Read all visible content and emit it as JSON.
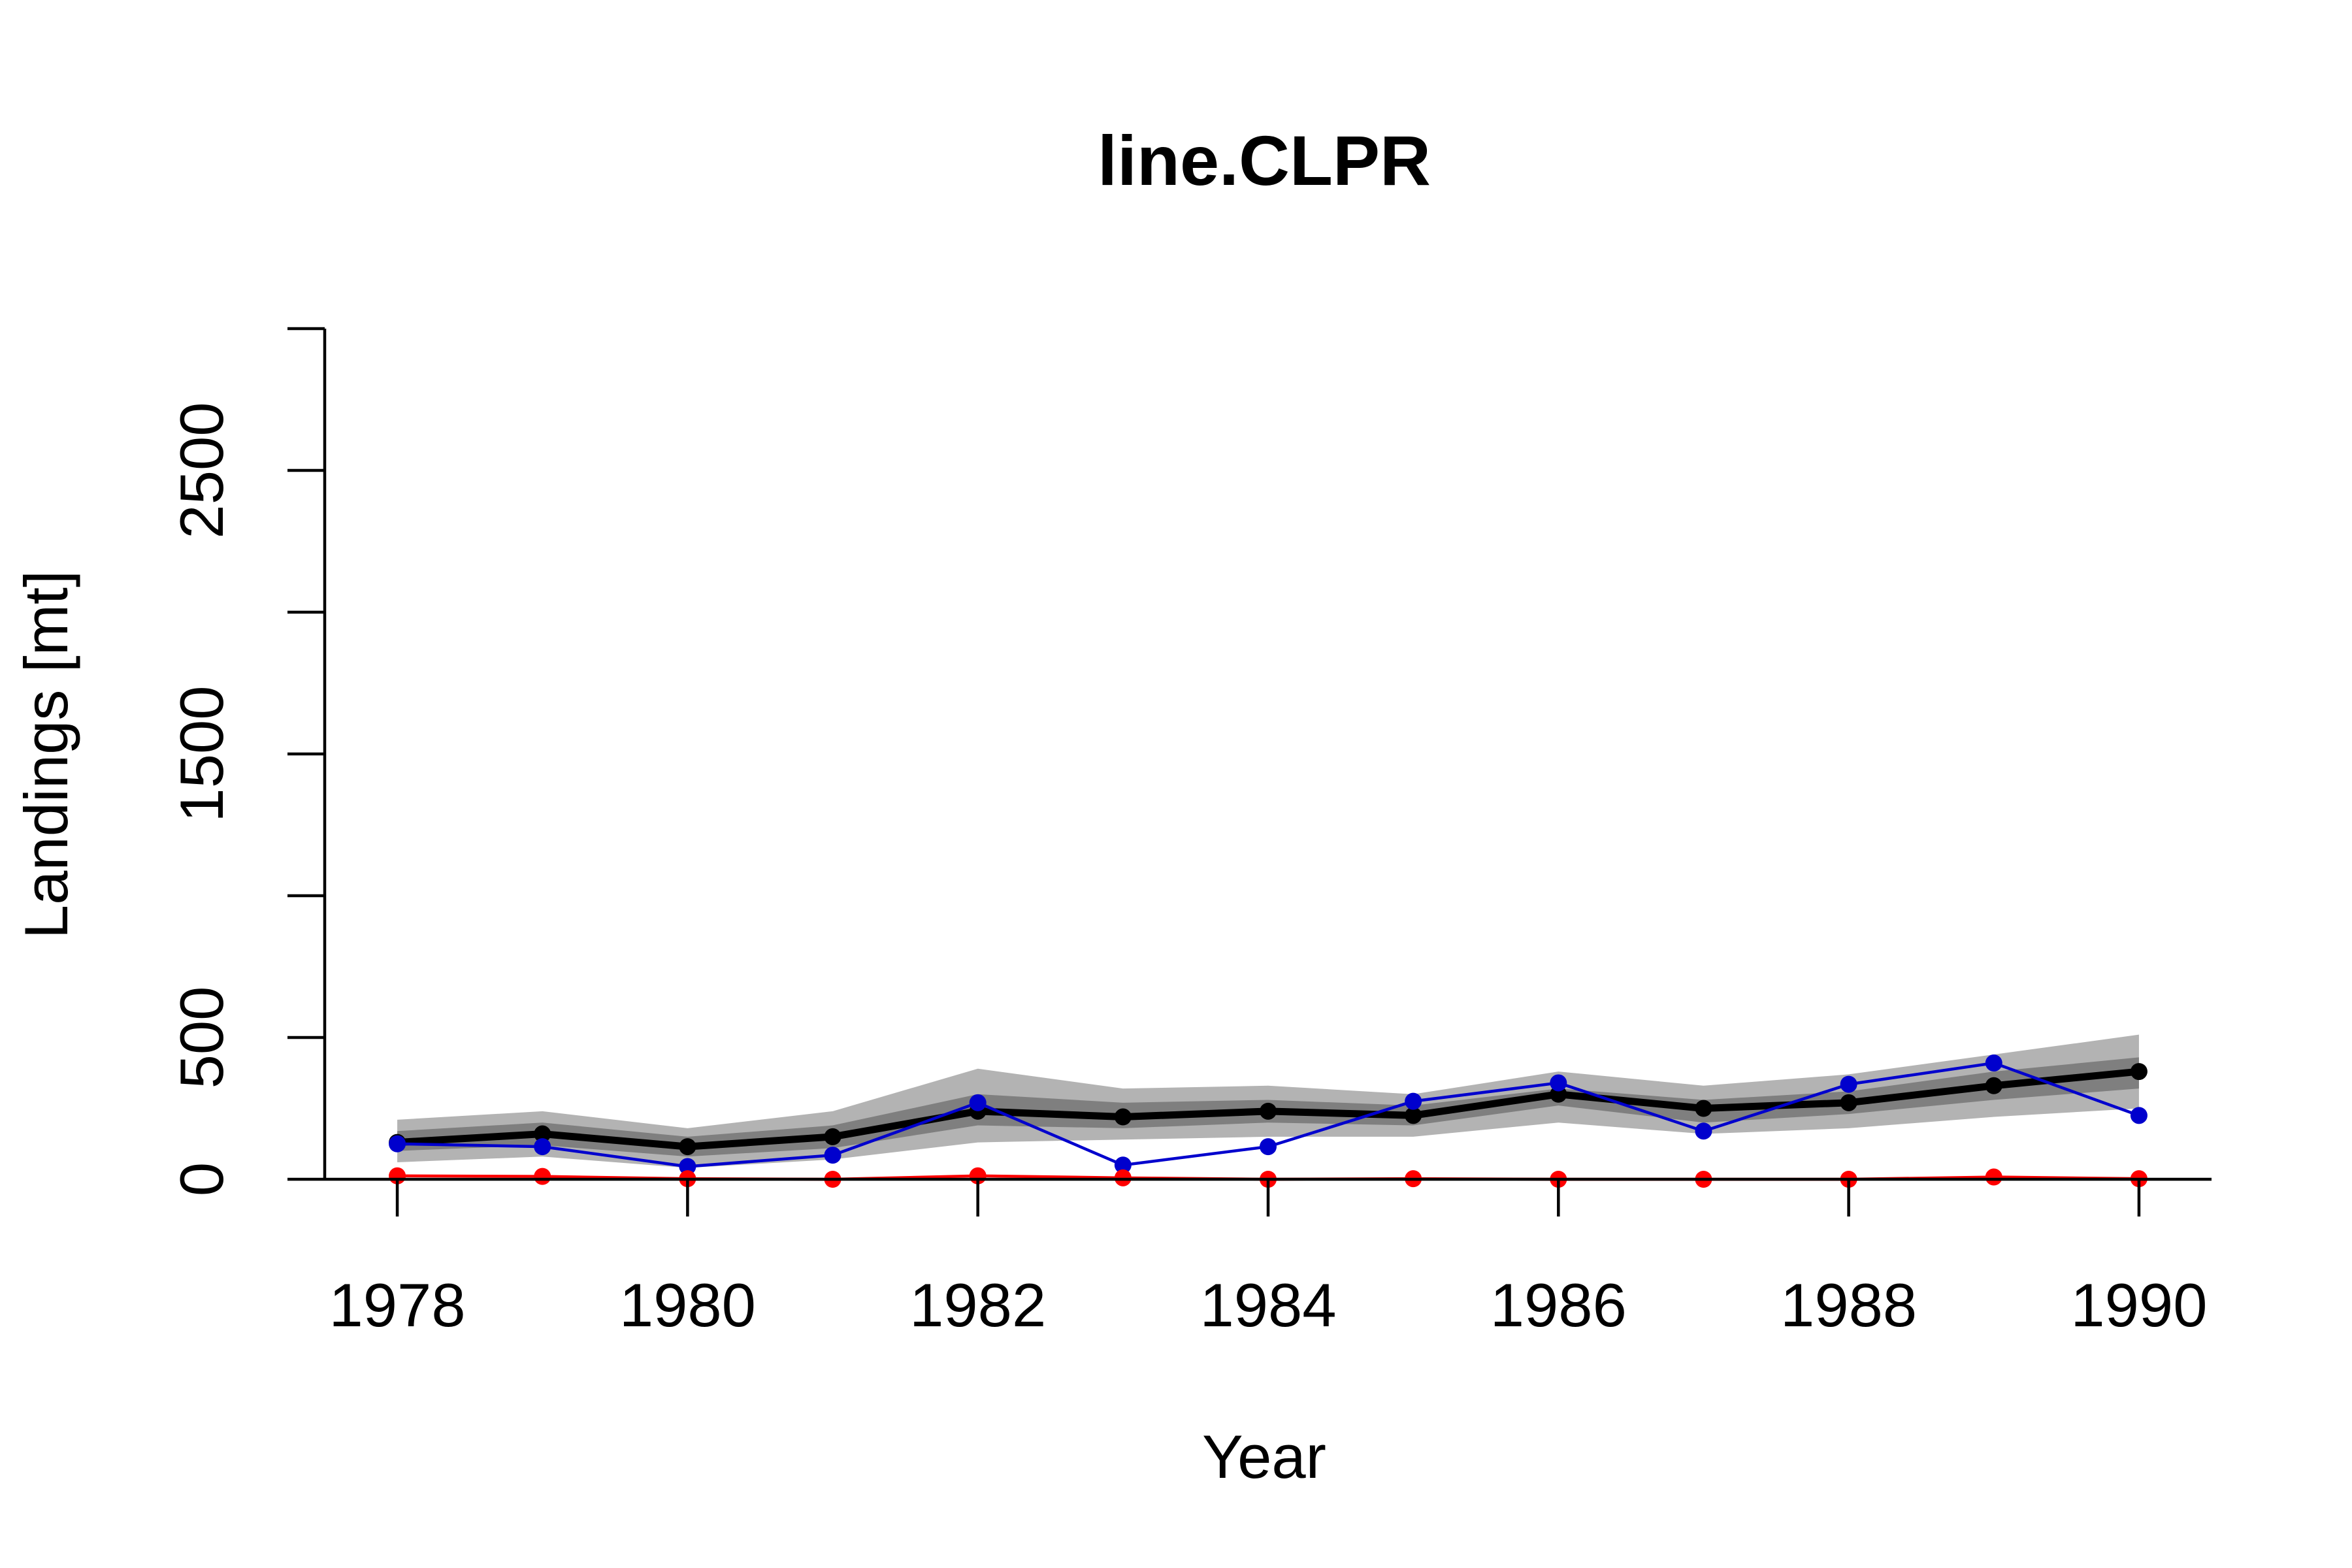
{
  "chart_data": {
    "type": "line",
    "title": "line.CLPR",
    "xlabel": "Year",
    "ylabel": "Landings [mt]",
    "x": [
      1978,
      1979,
      1980,
      1981,
      1982,
      1983,
      1984,
      1985,
      1986,
      1987,
      1988,
      1989,
      1990
    ],
    "xlim": [
      1977.5,
      1990.5
    ],
    "ylim": [
      0,
      3000
    ],
    "x_ticks": [
      1978,
      1980,
      1982,
      1984,
      1986,
      1988,
      1990
    ],
    "y_ticks": [
      0,
      500,
      1000,
      1500,
      2000,
      2500,
      3000
    ],
    "y_tick_labels": [
      "0",
      "500",
      "",
      "1500",
      "",
      "2500",
      ""
    ],
    "grid": false,
    "legend": "none",
    "bands": [
      {
        "color": "#b3b3b3",
        "lower": [
          60,
          80,
          40,
          70,
          130,
          140,
          150,
          150,
          200,
          160,
          180,
          220,
          250
        ],
        "upper": [
          210,
          240,
          180,
          240,
          390,
          320,
          330,
          300,
          380,
          330,
          370,
          440,
          510
        ]
      },
      {
        "color": "#7f7f7f",
        "lower": [
          100,
          120,
          80,
          110,
          190,
          180,
          200,
          190,
          260,
          200,
          230,
          280,
          320
        ],
        "upper": [
          170,
          200,
          150,
          190,
          300,
          270,
          280,
          260,
          320,
          280,
          310,
          380,
          430
        ]
      }
    ],
    "series": [
      {
        "color": "#000000",
        "line_width": 11,
        "point_radius": 13,
        "values": [
          130,
          160,
          115,
          150,
          240,
          220,
          240,
          225,
          300,
          250,
          270,
          330,
          380
        ]
      },
      {
        "color": "#0000cd",
        "line_width": 4.5,
        "point_radius": 13,
        "values": [
          125,
          115,
          45,
          85,
          270,
          50,
          115,
          275,
          340,
          170,
          335,
          410,
          225
        ]
      },
      {
        "color": "#ff0000",
        "line_width": 4.5,
        "point_radius": 13,
        "values": [
          12,
          10,
          2,
          0,
          12,
          5,
          0,
          2,
          0,
          0,
          0,
          8,
          2
        ]
      }
    ]
  }
}
